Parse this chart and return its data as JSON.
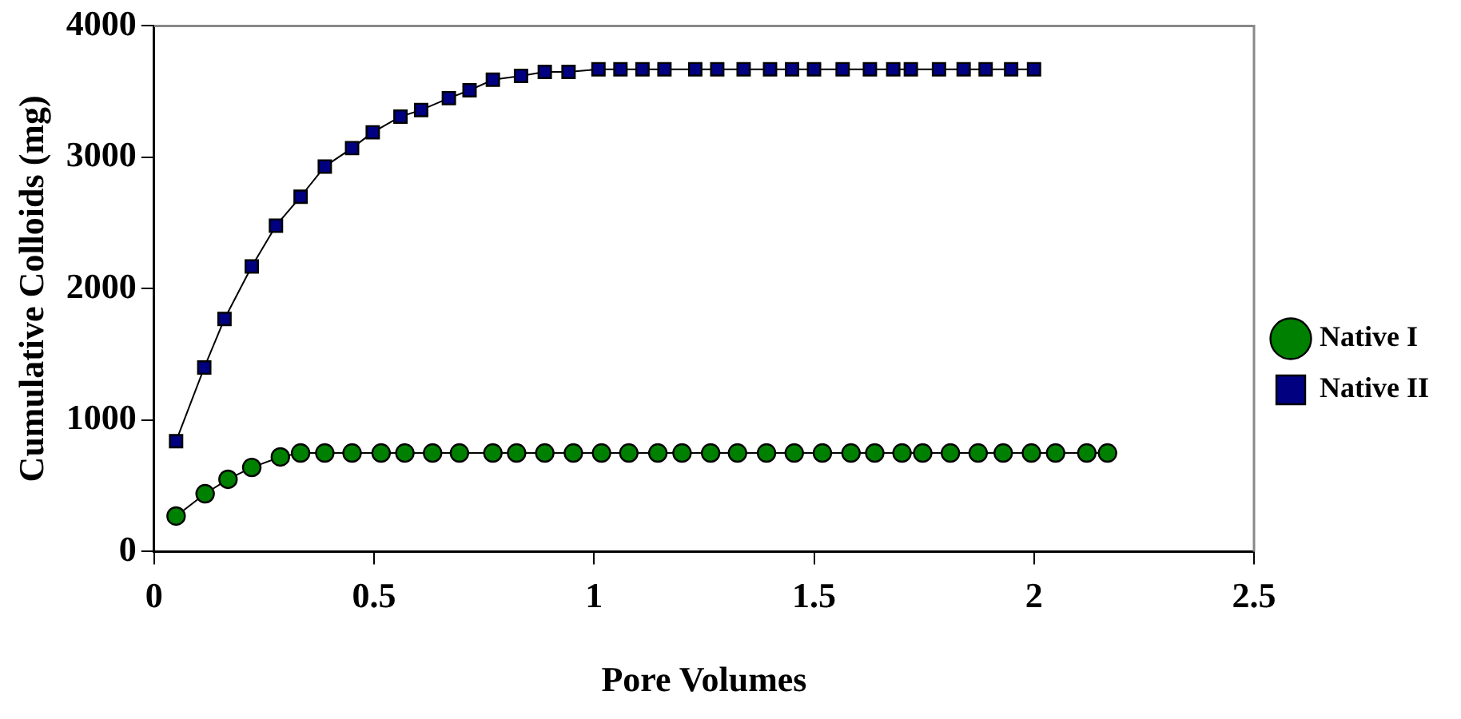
{
  "chart_data": {
    "type": "line",
    "xlabel": "Pore Volumes",
    "ylabel": "Cumulative Colloids (mg)",
    "xlim": [
      0,
      2.5
    ],
    "xticks": [
      0,
      0.5,
      1,
      1.5,
      2,
      2.5
    ],
    "ylim": [
      0,
      4000
    ],
    "yticks": [
      0,
      1000,
      2000,
      3000,
      4000
    ],
    "grid": false,
    "legend": "right",
    "line_style": "solid",
    "series": [
      {
        "name": "Native I",
        "color": "#008000",
        "marker": "circle",
        "x": [
          0.05,
          0.116,
          0.168,
          0.222,
          0.287,
          0.333,
          0.388,
          0.45,
          0.516,
          0.57,
          0.633,
          0.694,
          0.77,
          0.824,
          0.888,
          0.953,
          1.017,
          1.079,
          1.145,
          1.2,
          1.265,
          1.326,
          1.392,
          1.455,
          1.519,
          1.584,
          1.638,
          1.7,
          1.747,
          1.81,
          1.873,
          1.93,
          1.994,
          2.049,
          2.12,
          2.167
        ],
        "values": [
          270,
          440,
          550,
          640,
          720,
          750,
          750,
          750,
          750,
          750,
          750,
          750,
          750,
          750,
          750,
          750,
          750,
          750,
          750,
          750,
          750,
          750,
          750,
          750,
          750,
          750,
          750,
          750,
          750,
          750,
          750,
          750,
          750,
          750,
          750,
          750
        ]
      },
      {
        "name": "Native II",
        "color": "#000080",
        "marker": "square",
        "x": [
          0.05,
          0.114,
          0.16,
          0.222,
          0.277,
          0.333,
          0.388,
          0.45,
          0.497,
          0.56,
          0.607,
          0.67,
          0.717,
          0.77,
          0.834,
          0.888,
          0.942,
          1.01,
          1.06,
          1.11,
          1.16,
          1.23,
          1.28,
          1.34,
          1.4,
          1.45,
          1.5,
          1.565,
          1.627,
          1.68,
          1.72,
          1.784,
          1.84,
          1.89,
          1.948,
          2.0
        ],
        "values": [
          840,
          1400,
          1770,
          2170,
          2480,
          2700,
          2930,
          3070,
          3190,
          3310,
          3360,
          3450,
          3510,
          3590,
          3620,
          3650,
          3650,
          3670,
          3670,
          3670,
          3670,
          3670,
          3670,
          3670,
          3670,
          3670,
          3670,
          3670,
          3670,
          3670,
          3670,
          3670,
          3670,
          3670,
          3670,
          3670
        ]
      }
    ]
  }
}
